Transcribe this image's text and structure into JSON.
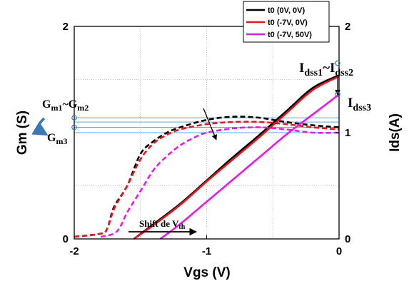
{
  "chart_data": {
    "type": "line",
    "xlabel": "Vgs (V)",
    "ylabel_left": "Gm (S)",
    "ylabel_right": "Ids(A)",
    "xlim": [
      -2,
      0
    ],
    "ylim_left": [
      0,
      2
    ],
    "ylim_right": [
      0,
      2
    ],
    "x_ticks": [
      "-2",
      "-1",
      "0"
    ],
    "y_left_ticks": [
      "0",
      "2"
    ],
    "y_right_ticks": [
      "0",
      "1",
      "2"
    ],
    "grid": true,
    "legend_position": "top-right",
    "series": [
      {
        "name": "t0 (0V, 0V)",
        "color": "#000000",
        "ids": [
          [
            -1.55,
            0.0
          ],
          [
            -1.4,
            0.14
          ],
          [
            -1.2,
            0.33
          ],
          [
            -1.0,
            0.55
          ],
          [
            -0.8,
            0.77
          ],
          [
            -0.6,
            0.98
          ],
          [
            -0.4,
            1.2
          ],
          [
            -0.2,
            1.42
          ],
          [
            0.0,
            1.54
          ]
        ],
        "gm": [
          [
            -2.0,
            0.02
          ],
          [
            -1.8,
            0.05
          ],
          [
            -1.75,
            0.1
          ],
          [
            -1.7,
            0.3
          ],
          [
            -1.6,
            0.5
          ],
          [
            -1.5,
            0.8
          ],
          [
            -1.4,
            0.92
          ],
          [
            -1.3,
            1.0
          ],
          [
            -1.2,
            1.05
          ],
          [
            -1.0,
            1.12
          ],
          [
            -0.8,
            1.15
          ],
          [
            -0.6,
            1.14
          ],
          [
            -0.4,
            1.1
          ],
          [
            -0.2,
            1.07
          ],
          [
            0.0,
            1.05
          ]
        ]
      },
      {
        "name": "t0 (-7V, 0V)",
        "color": "#e8171e",
        "ids": [
          [
            -1.55,
            0.0
          ],
          [
            -1.4,
            0.13
          ],
          [
            -1.2,
            0.32
          ],
          [
            -1.0,
            0.54
          ],
          [
            -0.8,
            0.75
          ],
          [
            -0.6,
            0.96
          ],
          [
            -0.4,
            1.18
          ],
          [
            -0.2,
            1.4
          ],
          [
            0.0,
            1.53
          ]
        ],
        "gm": [
          [
            -2.0,
            0.02
          ],
          [
            -1.8,
            0.05
          ],
          [
            -1.75,
            0.1
          ],
          [
            -1.7,
            0.28
          ],
          [
            -1.6,
            0.5
          ],
          [
            -1.5,
            0.75
          ],
          [
            -1.4,
            0.9
          ],
          [
            -1.3,
            0.98
          ],
          [
            -1.2,
            1.03
          ],
          [
            -1.0,
            1.08
          ],
          [
            -0.8,
            1.1
          ],
          [
            -0.6,
            1.1
          ],
          [
            -0.4,
            1.08
          ],
          [
            -0.2,
            1.05
          ],
          [
            0.0,
            1.03
          ]
        ]
      },
      {
        "name": "t0 (-7V, 50V)",
        "color": "#e619e6",
        "ids": [
          [
            -1.35,
            0.0
          ],
          [
            -1.2,
            0.14
          ],
          [
            -1.0,
            0.35
          ],
          [
            -0.8,
            0.56
          ],
          [
            -0.6,
            0.77
          ],
          [
            -0.4,
            0.98
          ],
          [
            -0.2,
            1.17
          ],
          [
            0.0,
            1.36
          ]
        ],
        "gm": [
          [
            -1.8,
            0.02
          ],
          [
            -1.7,
            0.05
          ],
          [
            -1.65,
            0.12
          ],
          [
            -1.6,
            0.25
          ],
          [
            -1.5,
            0.45
          ],
          [
            -1.4,
            0.65
          ],
          [
            -1.3,
            0.78
          ],
          [
            -1.2,
            0.88
          ],
          [
            -1.1,
            0.95
          ],
          [
            -1.0,
            1.0
          ],
          [
            -0.8,
            1.04
          ],
          [
            -0.6,
            1.05
          ],
          [
            -0.4,
            1.03
          ],
          [
            -0.2,
            1.0
          ],
          [
            0.0,
            1.0
          ]
        ]
      }
    ],
    "annotations": {
      "idss_label": [
        "I",
        "dss1",
        "~",
        "I",
        "dss2"
      ],
      "idss3_label": [
        "I",
        "dss3"
      ],
      "gm12_label": [
        "G",
        "m1",
        "~",
        "G",
        "m2"
      ],
      "gm3_label": [
        "G",
        "m3"
      ],
      "vth_label": [
        "Shift de V",
        "th"
      ],
      "ref_lines_ids": [
        1.14,
        1.1,
        1.05,
        1.0
      ]
    }
  }
}
